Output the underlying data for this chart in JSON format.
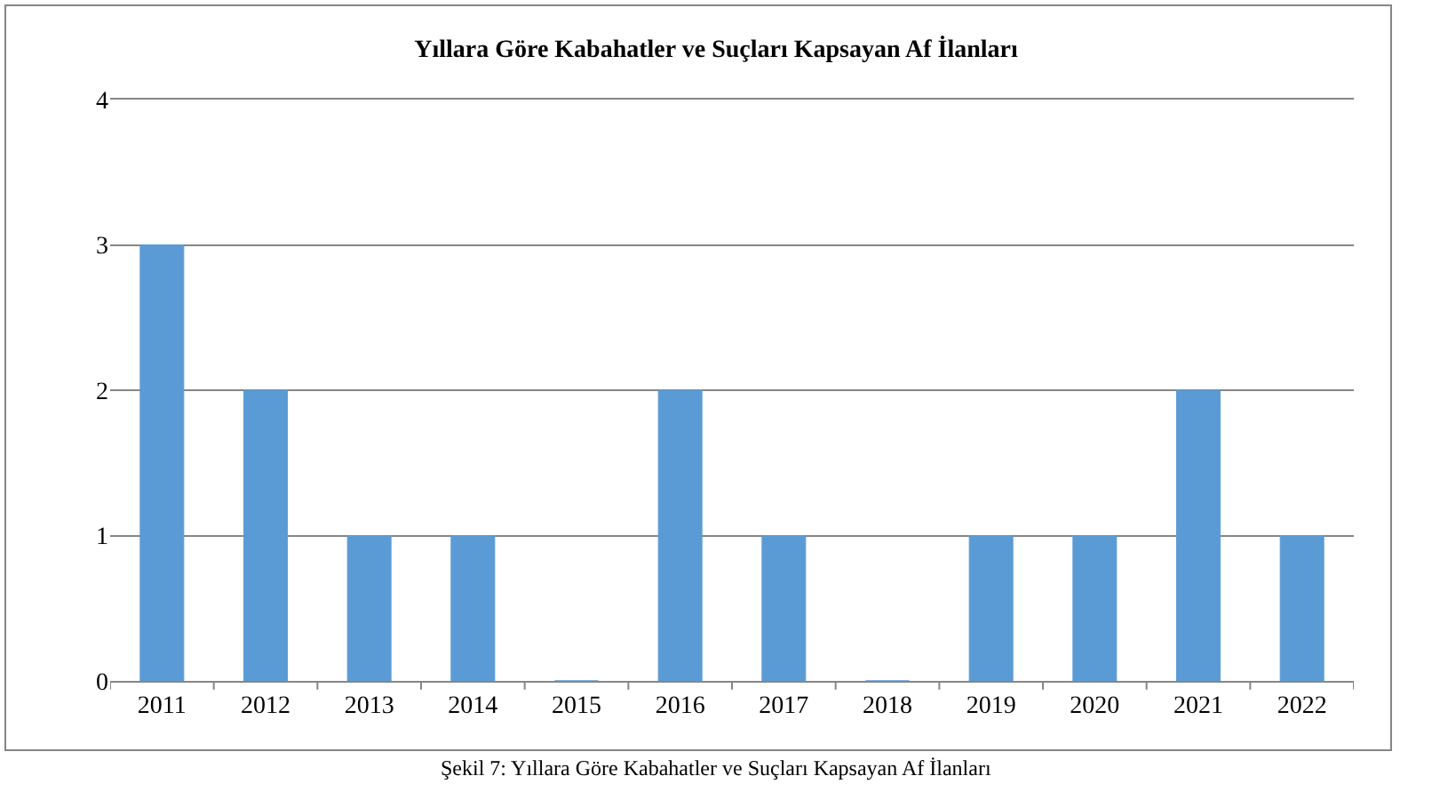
{
  "chart_data": {
    "type": "bar",
    "title": "Yıllara Göre Kabahatler ve Suçları Kapsayan Af İlanları",
    "categories": [
      "2011",
      "2012",
      "2013",
      "2014",
      "2015",
      "2016",
      "2017",
      "2018",
      "2019",
      "2020",
      "2021",
      "2022"
    ],
    "values": [
      3,
      2,
      1,
      1,
      0,
      2,
      1,
      0,
      1,
      1,
      2,
      1
    ],
    "color": "#5b9bd5",
    "ylim": [
      0,
      4
    ],
    "yticks": [
      0,
      1,
      2,
      3,
      4
    ],
    "grid": "y",
    "annotations": [
      "Şekil 7: Yıllara Göre Kabahatler ve Suçları Kapsayan Af İlanları"
    ]
  }
}
